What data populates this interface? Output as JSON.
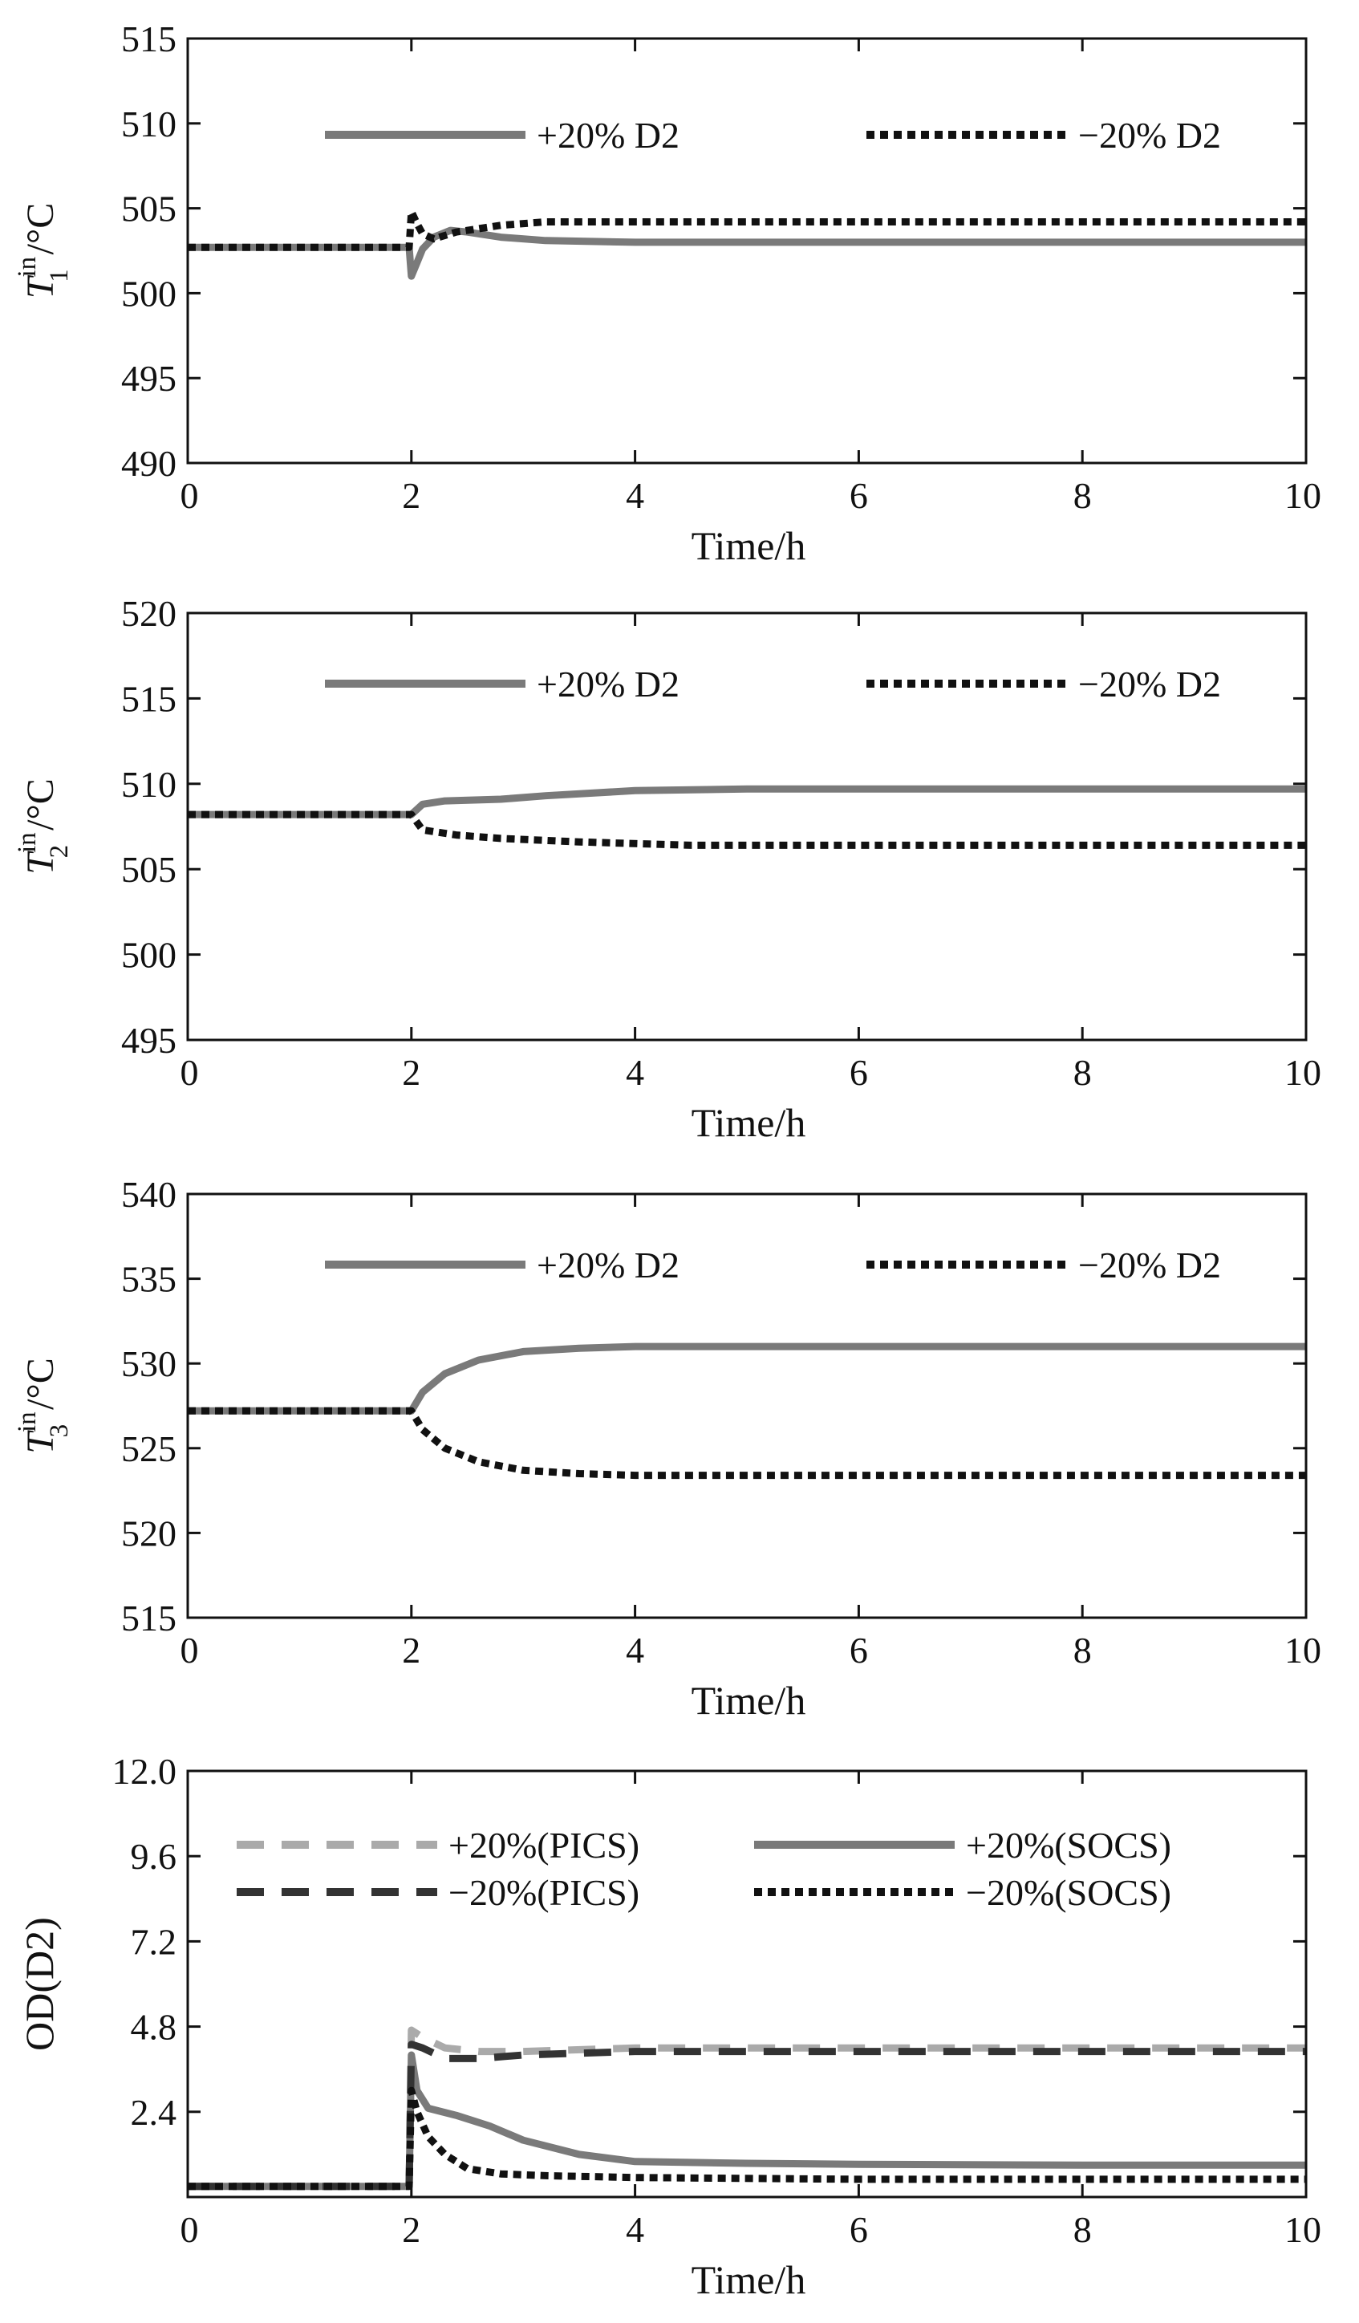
{
  "chart_data": [
    {
      "type": "line",
      "xlabel": "Time/h",
      "ylabel": {
        "symbol": "T",
        "sup": "in",
        "sub": "1",
        "unit": "/°C"
      },
      "xlim": [
        0,
        10
      ],
      "ylim": [
        490,
        515
      ],
      "xticks": [
        "0",
        "2",
        "4",
        "6",
        "8",
        "10"
      ],
      "yticks": [
        "490",
        "495",
        "500",
        "505",
        "510",
        "515"
      ],
      "legend_position": "top",
      "series": [
        {
          "name": "+20% D2",
          "color": "#7a7a7a",
          "style": "solid",
          "x": [
            0,
            1.98,
            2.0,
            2.05,
            2.1,
            2.2,
            2.35,
            2.5,
            2.8,
            3.2,
            4,
            6,
            8,
            10
          ],
          "y": [
            502.7,
            502.7,
            501.0,
            501.8,
            502.6,
            503.3,
            503.7,
            503.6,
            503.3,
            503.1,
            503.0,
            503.0,
            503.0,
            503.0
          ]
        },
        {
          "name": "−20% D2",
          "color": "#111111",
          "style": "dotted",
          "x": [
            0,
            1.98,
            2.0,
            2.05,
            2.1,
            2.2,
            2.4,
            2.8,
            3.2,
            4,
            6,
            8,
            10
          ],
          "y": [
            502.7,
            502.7,
            504.8,
            504.1,
            503.5,
            503.2,
            503.6,
            504.0,
            504.2,
            504.2,
            504.2,
            504.2,
            504.2
          ]
        }
      ]
    },
    {
      "type": "line",
      "xlabel": "Time/h",
      "ylabel": {
        "symbol": "T",
        "sup": "in",
        "sub": "2",
        "unit": "/°C"
      },
      "xlim": [
        0,
        10
      ],
      "ylim": [
        495,
        520
      ],
      "xticks": [
        "0",
        "2",
        "4",
        "6",
        "8",
        "10"
      ],
      "yticks": [
        "495",
        "500",
        "505",
        "510",
        "515",
        "520"
      ],
      "legend_position": "top",
      "series": [
        {
          "name": "+20% D2",
          "color": "#7a7a7a",
          "style": "solid",
          "x": [
            0,
            2.0,
            2.1,
            2.3,
            2.8,
            3.2,
            4,
            5,
            6,
            8,
            10
          ],
          "y": [
            508.2,
            508.2,
            508.8,
            509.0,
            509.1,
            509.3,
            509.6,
            509.7,
            509.7,
            509.7,
            509.7
          ]
        },
        {
          "name": "−20% D2",
          "color": "#111111",
          "style": "dotted",
          "x": [
            0,
            2.0,
            2.1,
            2.4,
            2.8,
            3.5,
            4.5,
            6,
            8,
            10
          ],
          "y": [
            508.2,
            508.2,
            507.3,
            507.0,
            506.8,
            506.6,
            506.4,
            506.4,
            506.4,
            506.4
          ]
        }
      ]
    },
    {
      "type": "line",
      "xlabel": "Time/h",
      "ylabel": {
        "symbol": "T",
        "sup": "in",
        "sub": "3",
        "unit": "/°C"
      },
      "xlim": [
        0,
        10
      ],
      "ylim": [
        515,
        540
      ],
      "xticks": [
        "0",
        "2",
        "4",
        "6",
        "8",
        "10"
      ],
      "yticks": [
        "515",
        "520",
        "525",
        "530",
        "535",
        "540"
      ],
      "legend_position": "top",
      "series": [
        {
          "name": "+20% D2",
          "color": "#7a7a7a",
          "style": "solid",
          "x": [
            0,
            2.0,
            2.1,
            2.3,
            2.6,
            3.0,
            3.5,
            4,
            5,
            6,
            8,
            10
          ],
          "y": [
            527.2,
            527.2,
            528.3,
            529.4,
            530.2,
            530.7,
            530.9,
            531.0,
            531.0,
            531.0,
            531.0,
            531.0
          ]
        },
        {
          "name": "−20% D2",
          "color": "#111111",
          "style": "dotted",
          "x": [
            0,
            2.0,
            2.1,
            2.3,
            2.6,
            3.0,
            3.5,
            4,
            6,
            8,
            10
          ],
          "y": [
            527.2,
            527.2,
            526.1,
            525.0,
            524.2,
            523.7,
            523.5,
            523.4,
            523.4,
            523.4,
            523.4
          ]
        }
      ]
    },
    {
      "type": "line",
      "xlabel": "Time/h",
      "ylabel": {
        "text": "OD(D2)"
      },
      "xlim": [
        0,
        10
      ],
      "ylim": [
        0,
        12.0
      ],
      "xticks": [
        "0",
        "2",
        "4",
        "6",
        "8",
        "10"
      ],
      "yticks": [
        "2.4",
        "4.8",
        "7.2",
        "9.6",
        "12.0"
      ],
      "ytick_values": [
        2.4,
        4.8,
        7.2,
        9.6,
        12.0
      ],
      "legend_position": "top",
      "legend_columns": 2,
      "series": [
        {
          "name": "+20%(PICS)",
          "color": "#aaaaaa",
          "style": "dashed",
          "x": [
            0,
            1.98,
            2.0,
            2.1,
            2.3,
            2.6,
            3.0,
            4,
            6,
            8,
            10
          ],
          "y": [
            0.3,
            0.3,
            4.7,
            4.5,
            4.2,
            4.1,
            4.1,
            4.2,
            4.2,
            4.2,
            4.2
          ]
        },
        {
          "name": "+20%(SOCS)",
          "color": "#7a7a7a",
          "style": "solid",
          "x": [
            0,
            1.98,
            2.0,
            2.05,
            2.15,
            2.4,
            2.7,
            3.0,
            3.5,
            4,
            5,
            6,
            8,
            10
          ],
          "y": [
            0.3,
            0.3,
            4.0,
            3.0,
            2.5,
            2.3,
            2.0,
            1.6,
            1.2,
            1.0,
            0.95,
            0.92,
            0.9,
            0.9
          ]
        },
        {
          "name": "−20%(PICS)",
          "color": "#333333",
          "style": "dashed",
          "x": [
            0,
            1.98,
            2.0,
            2.1,
            2.3,
            2.6,
            3.0,
            4,
            6,
            8,
            10
          ],
          "y": [
            0.3,
            0.3,
            4.3,
            4.2,
            3.9,
            3.9,
            4.0,
            4.1,
            4.1,
            4.1,
            4.1
          ]
        },
        {
          "name": "−20%(SOCS)",
          "color": "#111111",
          "style": "dotted",
          "x": [
            0,
            1.98,
            2.0,
            2.05,
            2.15,
            2.3,
            2.5,
            2.8,
            3.2,
            4,
            6,
            8,
            10
          ],
          "y": [
            0.3,
            0.3,
            3.0,
            2.4,
            1.7,
            1.2,
            0.8,
            0.65,
            0.6,
            0.55,
            0.5,
            0.5,
            0.5
          ]
        }
      ]
    }
  ]
}
